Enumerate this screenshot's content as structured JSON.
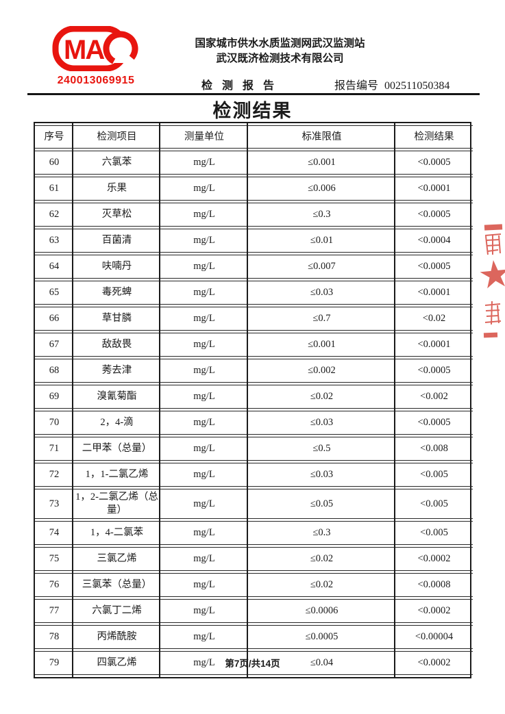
{
  "page": {
    "title": "检测结果",
    "footer": "第7页/共14页"
  },
  "header": {
    "cma_letters": "MA",
    "cma_number": "240013069915",
    "org_line1": "国家城市供水水质监测网武汉监测站",
    "org_line2": "武汉既济检测技术有限公司",
    "report_title": "检 测 报 告",
    "report_no_label": "报告编号",
    "report_no": "002511050384"
  },
  "colors": {
    "cma_red": "#e8150f",
    "seal_red": "#d64c41",
    "text": "#1a1a1a"
  },
  "table": {
    "columns": [
      "序号",
      "检测项目",
      "测量单位",
      "标准限值",
      "检测结果"
    ],
    "rows": [
      [
        "60",
        "六氯苯",
        "mg/L",
        "≤0.001",
        "<0.0005"
      ],
      [
        "61",
        "乐果",
        "mg/L",
        "≤0.006",
        "<0.0001"
      ],
      [
        "62",
        "灭草松",
        "mg/L",
        "≤0.3",
        "<0.0005"
      ],
      [
        "63",
        "百菌清",
        "mg/L",
        "≤0.01",
        "<0.0004"
      ],
      [
        "64",
        "呋喃丹",
        "mg/L",
        "≤0.007",
        "<0.0005"
      ],
      [
        "65",
        "毒死蜱",
        "mg/L",
        "≤0.03",
        "<0.0001"
      ],
      [
        "66",
        "草甘膦",
        "mg/L",
        "≤0.7",
        "<0.02"
      ],
      [
        "67",
        "敌敌畏",
        "mg/L",
        "≤0.001",
        "<0.0001"
      ],
      [
        "68",
        "莠去津",
        "mg/L",
        "≤0.002",
        "<0.0005"
      ],
      [
        "69",
        "溴氰菊酯",
        "mg/L",
        "≤0.02",
        "<0.002"
      ],
      [
        "70",
        "2，4-滴",
        "mg/L",
        "≤0.03",
        "<0.0005"
      ],
      [
        "71",
        "二甲苯（总量）",
        "mg/L",
        "≤0.5",
        "<0.008"
      ],
      [
        "72",
        "1，1-二氯乙烯",
        "mg/L",
        "≤0.03",
        "<0.005"
      ],
      [
        "73",
        "1，2-二氯乙烯（总量）",
        "mg/L",
        "≤0.05",
        "<0.005"
      ],
      [
        "74",
        "1，4-二氯苯",
        "mg/L",
        "≤0.3",
        "<0.005"
      ],
      [
        "75",
        "三氯乙烯",
        "mg/L",
        "≤0.02",
        "<0.0002"
      ],
      [
        "76",
        "三氯苯（总量）",
        "mg/L",
        "≤0.02",
        "<0.0008"
      ],
      [
        "77",
        "六氯丁二烯",
        "mg/L",
        "≤0.0006",
        "<0.0002"
      ],
      [
        "78",
        "丙烯酰胺",
        "mg/L",
        "≤0.0005",
        "<0.00004"
      ],
      [
        "79",
        "四氯乙烯",
        "mg/L",
        "≤0.04",
        "<0.0002"
      ]
    ]
  }
}
